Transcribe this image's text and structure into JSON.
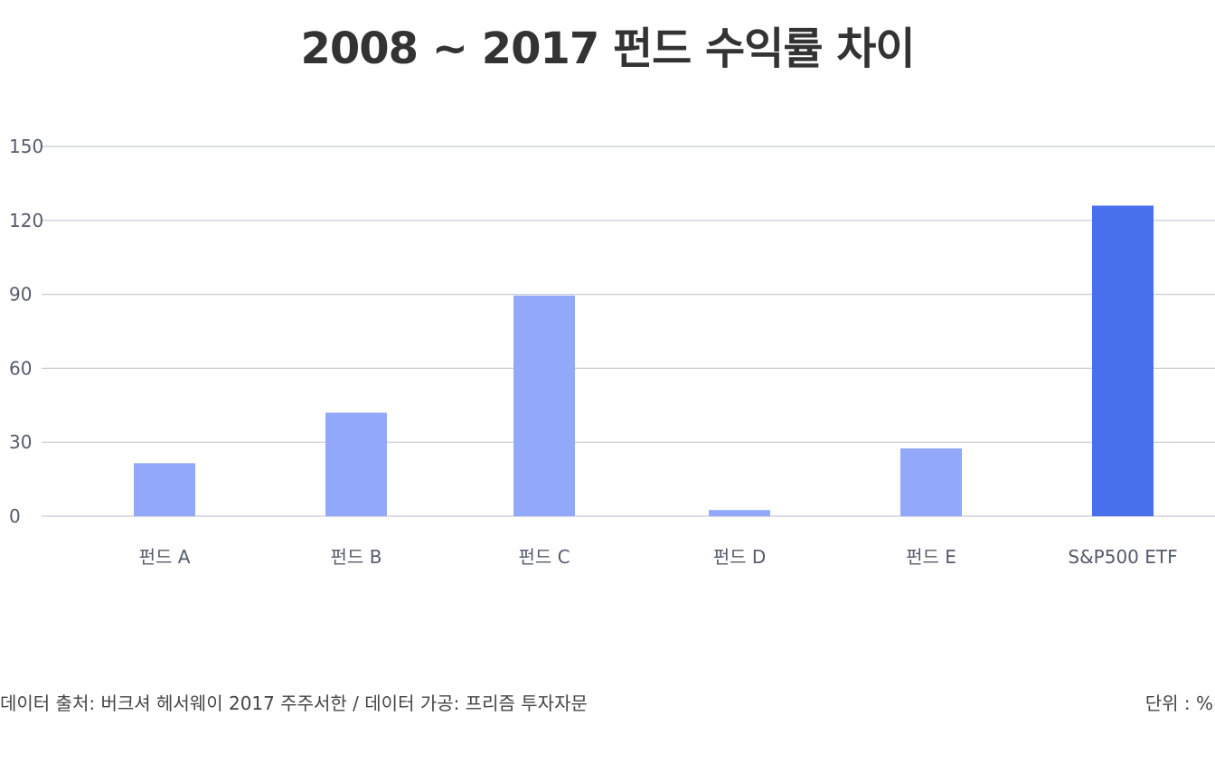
{
  "chart_data": {
    "type": "bar",
    "title": "2008 ~ 2017 펀드 수익률 차이",
    "categories": [
      "펀드 A",
      "펀드 B",
      "펀드 C",
      "펀드 D",
      "펀드 E",
      "S&P500 ETF"
    ],
    "values": [
      21.5,
      42,
      89.5,
      2.5,
      27.5,
      126
    ],
    "ylim": [
      0,
      150
    ],
    "yticks": [
      0,
      30,
      60,
      90,
      120,
      150
    ],
    "grid": true,
    "xlabel": "",
    "ylabel": "",
    "colors": {
      "default_bar": "#91a8fb",
      "highlight_bar": "#4870ec",
      "gridline": "#c8cad3"
    },
    "highlight_index": 5
  },
  "footer": {
    "source": "데이터 출처: 버크셔 헤서웨이 2017 주주서한 / 데이터 가공: 프리즘 투자자문",
    "unit": "단위 : %"
  }
}
